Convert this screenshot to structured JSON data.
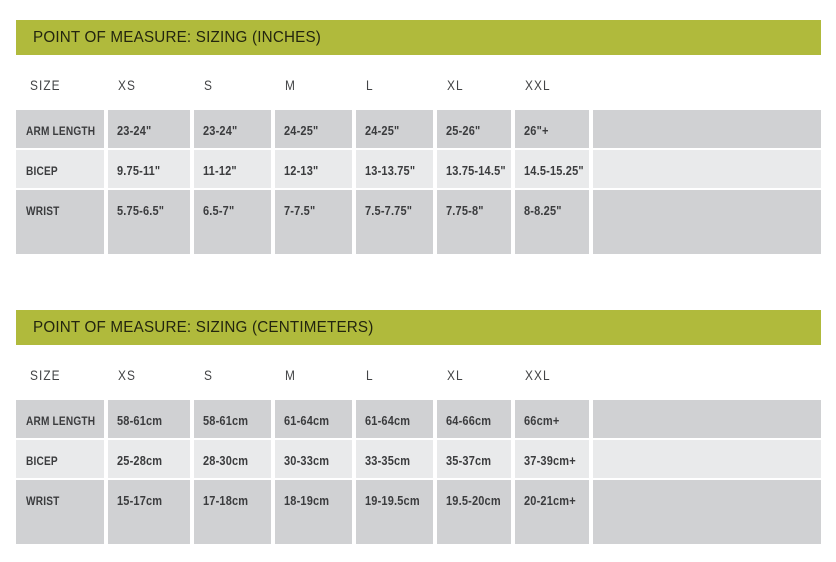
{
  "colors": {
    "accent_green": "#b0ba3c",
    "row_dark": "#d0d1d3",
    "row_light": "#e9eaeb",
    "text_dark": "#3b3c3e"
  },
  "tables": [
    {
      "id": "inches",
      "title": "POINT OF MEASURE: SIZING (INCHES)",
      "columns": [
        "SIZE",
        "XS",
        "S",
        "M",
        "L",
        "XL",
        "XXL"
      ],
      "rows": [
        {
          "label": "ARM LENGTH",
          "values": [
            "23-24\"",
            "23-24\"",
            "24-25\"",
            "24-25\"",
            "25-26\"",
            "26\"+"
          ]
        },
        {
          "label": "BICEP",
          "values": [
            "9.75-11\"",
            "11-12\"",
            "12-13\"",
            "13-13.75\"",
            "13.75-14.5\"",
            "14.5-15.25\""
          ]
        },
        {
          "label": "WRIST",
          "values": [
            "5.75-6.5\"",
            "6.5-7\"",
            "7-7.5\"",
            "7.5-7.75\"",
            "7.75-8\"",
            "8-8.25\""
          ]
        }
      ]
    },
    {
      "id": "centimeters",
      "title": "POINT OF MEASURE: SIZING (CENTIMETERS)",
      "columns": [
        "SIZE",
        "XS",
        "S",
        "M",
        "L",
        "XL",
        "XXL"
      ],
      "rows": [
        {
          "label": "ARM LENGTH",
          "values": [
            "58-61cm",
            "58-61cm",
            "61-64cm",
            "61-64cm",
            "64-66cm",
            "66cm+"
          ]
        },
        {
          "label": "BICEP",
          "values": [
            "25-28cm",
            "28-30cm",
            "30-33cm",
            "33-35cm",
            "35-37cm",
            "37-39cm+"
          ]
        },
        {
          "label": "WRIST",
          "values": [
            "15-17cm",
            "17-18cm",
            "18-19cm",
            "19-19.5cm",
            "19.5-20cm",
            "20-21cm+"
          ]
        }
      ]
    }
  ]
}
